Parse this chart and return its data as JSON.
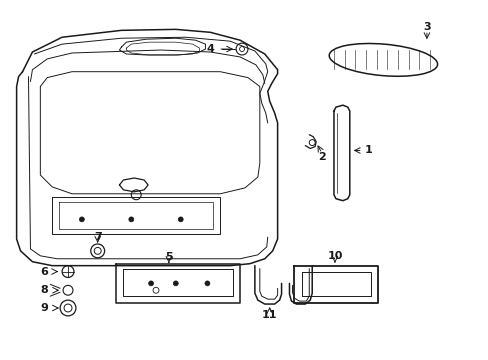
{
  "bg_color": "#ffffff",
  "line_color": "#1a1a1a",
  "lw_main": 1.1,
  "lw_inner": 0.7,
  "figsize": [
    4.89,
    3.6
  ],
  "dpi": 100
}
